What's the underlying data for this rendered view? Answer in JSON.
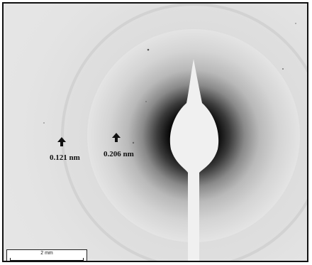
{
  "annotations": {
    "ring_inner": "0.206 nm",
    "ring_outer": "0.121 nm"
  },
  "scale_bar": {
    "label": "2 mm"
  },
  "colors": {
    "background": "#e4e4e4",
    "halo": "#0a0a0a",
    "beam_stop": "#f0f0f0"
  }
}
